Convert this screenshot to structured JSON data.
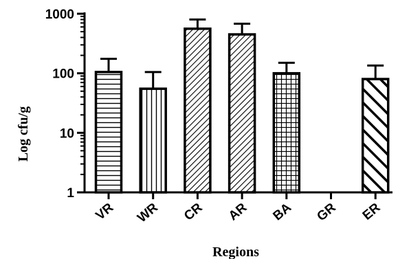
{
  "chart_data": {
    "type": "bar",
    "scale": "log",
    "xlabel": "Regions",
    "ylabel": "Log cfu/g",
    "ylim": [
      1,
      1000
    ],
    "yticks": [
      1,
      10,
      100,
      1000
    ],
    "ytick_labels": [
      "1",
      "10",
      "100",
      "1000"
    ],
    "categories": [
      "VR",
      "WR",
      "CR",
      "AR",
      "BA",
      "GR",
      "ER"
    ],
    "values": [
      105,
      55,
      560,
      450,
      100,
      null,
      80
    ],
    "error_upper": [
      175,
      105,
      800,
      680,
      150,
      null,
      135
    ],
    "patterns": [
      "horizontal",
      "vertical",
      "diagonal-dense",
      "diagonal-dense",
      "grid",
      "none",
      "diagonal-bold"
    ],
    "grid": false,
    "bar_color": "#000000"
  }
}
